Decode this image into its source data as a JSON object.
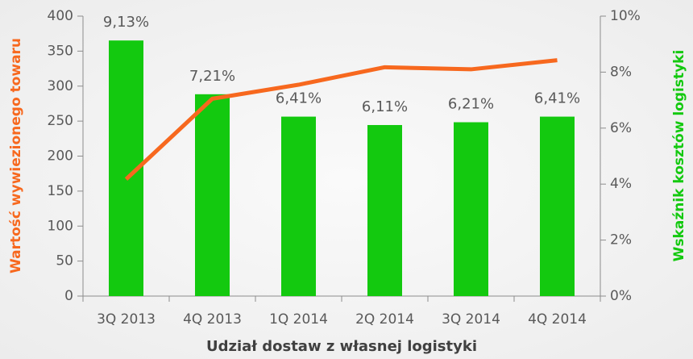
{
  "chart_data": {
    "type": "bar_line",
    "x_label": "Udział dostaw z własnej logistyki",
    "y_label": "Wartość wywiezionego towaru",
    "y2_label": "Wskaźnik kosztów logistyki",
    "categories": [
      "3Q 2013",
      "4Q 2013",
      "1Q 2014",
      "2Q 2014",
      "3Q 2014",
      "4Q 2014"
    ],
    "series": [
      {
        "name": "Wskaźnik kosztów logistyki",
        "type": "bar",
        "axis": "y2",
        "color": "#13c90f",
        "values": [
          9.13,
          7.21,
          6.41,
          6.11,
          6.21,
          6.41
        ],
        "value_labels": [
          "9,13%",
          "7,21%",
          "6,41%",
          "6,11%",
          "6,21%",
          "6,41%"
        ]
      },
      {
        "name": "Wartość wywiezionego towaru",
        "type": "line",
        "axis": "y",
        "color": "#f7681e",
        "values": [
          167,
          282,
          302,
          327,
          324,
          337
        ]
      }
    ],
    "ylim": [
      0,
      400
    ],
    "yticks": [
      0,
      50,
      100,
      150,
      200,
      250,
      300,
      350,
      400
    ],
    "y2lim": [
      0,
      10
    ],
    "y2ticks": [
      {
        "value": 0,
        "label": "0%"
      },
      {
        "value": 2,
        "label": "2%"
      },
      {
        "value": 4,
        "label": "4%"
      },
      {
        "value": 6,
        "label": "6%"
      },
      {
        "value": 8,
        "label": "8%"
      },
      {
        "value": 10,
        "label": "10%"
      }
    ]
  }
}
